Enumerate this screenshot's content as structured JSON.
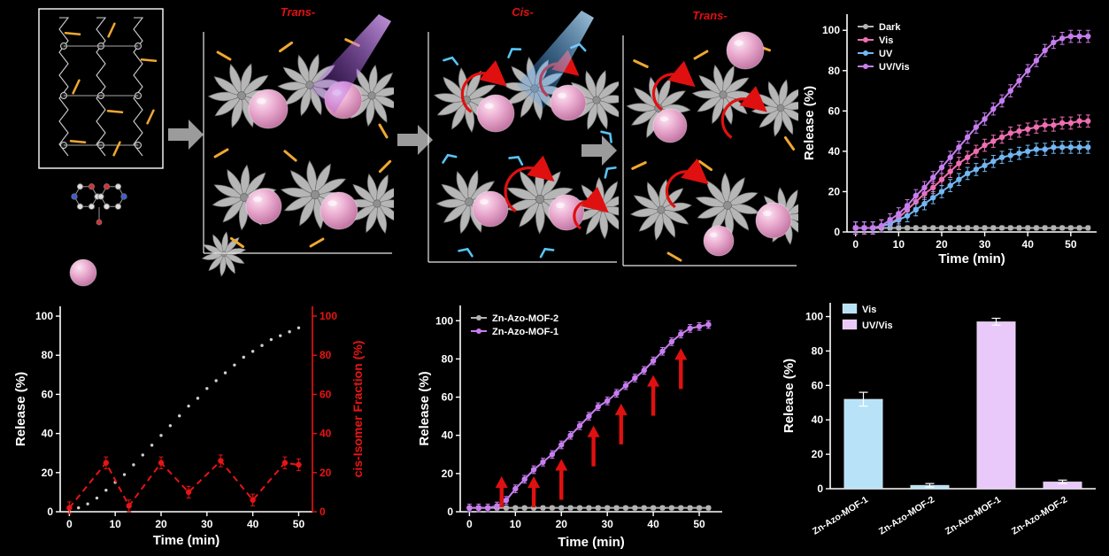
{
  "panels": {
    "trans1_label": "Trans-",
    "cis_label": "Cis-",
    "trans2_label": "Trans-"
  },
  "colors": {
    "background": "#000000",
    "accent_red": "#e01010",
    "sphere_pink": "#e2a3c7",
    "rosette_gray": "#b6b6b6",
    "azo_trans_orange": "#f0a830",
    "azo_cis_blue": "#58c4f5",
    "uv_beam_purple": "#b46ae6",
    "vis_beam_blue": "#3fa9f5"
  },
  "icons": {
    "guest_sphere": "pink-sphere",
    "rotor": "gray-rosette-pinwheel",
    "uv_beam": "purple-light-beam",
    "vis_beam": "blue-light-beam",
    "step_arrow": "gray-block-arrow",
    "rotation": "red-circular-arrow"
  },
  "chart_data": [
    {
      "id": "photo_release_kinetics",
      "type": "line",
      "title": "",
      "xlabel": "Time (min)",
      "ylabel": "Release (%)",
      "xlim": [
        -2,
        56
      ],
      "ylim": [
        0,
        108
      ],
      "xticks": [
        0,
        10,
        20,
        30,
        40,
        50
      ],
      "yticks": [
        0,
        20,
        40,
        60,
        80,
        100
      ],
      "grid": false,
      "legend_position": "top-left",
      "x": [
        0,
        2,
        4,
        6,
        8,
        10,
        12,
        14,
        16,
        18,
        20,
        22,
        24,
        26,
        28,
        30,
        32,
        34,
        36,
        38,
        40,
        42,
        44,
        46,
        48,
        50,
        52,
        54
      ],
      "series": [
        {
          "name": "Dark",
          "color": "#b3b3b3",
          "line": "solid",
          "marker": "circle",
          "error": 1,
          "values": [
            2,
            2,
            2,
            2,
            2,
            2,
            2,
            2,
            2,
            2,
            2,
            2,
            2,
            2,
            2,
            2,
            2,
            2,
            2,
            2,
            2,
            2,
            2,
            2,
            2,
            2,
            2,
            2
          ]
        },
        {
          "name": "Vis",
          "color": "#f06eb2",
          "line": "solid",
          "marker": "circle",
          "error": 3,
          "values": [
            2,
            2,
            2,
            3,
            4,
            7,
            11,
            15,
            19,
            22,
            26,
            30,
            34,
            37,
            40,
            43,
            45,
            47,
            49,
            50,
            51,
            52,
            53,
            53,
            54,
            54,
            55,
            55
          ]
        },
        {
          "name": "UV",
          "color": "#72b6f2",
          "line": "solid",
          "marker": "circle",
          "error": 3,
          "values": [
            2,
            2,
            2,
            3,
            4,
            6,
            8,
            11,
            14,
            17,
            20,
            23,
            26,
            29,
            31,
            33,
            35,
            37,
            38,
            39,
            40,
            41,
            41,
            42,
            42,
            42,
            42,
            42
          ]
        },
        {
          "name": "UV/Vis",
          "color": "#c77df0",
          "line": "solid",
          "marker": "circle",
          "error": 3,
          "values": [
            2,
            2,
            2,
            3,
            6,
            9,
            13,
            18,
            22,
            27,
            32,
            37,
            42,
            47,
            52,
            56,
            61,
            65,
            70,
            75,
            80,
            85,
            90,
            94,
            96,
            97,
            97,
            97
          ]
        }
      ]
    },
    {
      "id": "release_vs_cis_fraction",
      "type": "line-dual",
      "title": "",
      "xlabel": "Time (min)",
      "ylabel": "Release (%)",
      "ylabel_right": "cis-Isomer Fraction (%)",
      "xlim": [
        -2,
        53
      ],
      "ylim": [
        0,
        105
      ],
      "ylim_right": [
        0,
        105
      ],
      "xticks": [
        0,
        10,
        20,
        30,
        40,
        50
      ],
      "yticks": [
        0,
        20,
        40,
        60,
        80,
        100
      ],
      "yticks_right": [
        0,
        20,
        40,
        60,
        80,
        100
      ],
      "right_axis_color": "#e81414",
      "series": [
        {
          "name": "Release",
          "axis": "left",
          "color": "#cfcfcf",
          "line": "none",
          "marker": "dot",
          "error": 0,
          "x": [
            0,
            2,
            4,
            6,
            8,
            10,
            12,
            14,
            16,
            18,
            20,
            22,
            24,
            26,
            28,
            30,
            32,
            34,
            36,
            38,
            40,
            42,
            44,
            46,
            48,
            50
          ],
          "values": [
            0,
            2,
            4,
            7,
            11,
            15,
            19,
            24,
            29,
            34,
            39,
            44,
            49,
            54,
            58,
            63,
            67,
            71,
            75,
            79,
            82,
            85,
            88,
            90,
            92,
            94
          ]
        },
        {
          "name": "cis-Isomer Fraction",
          "axis": "right",
          "color": "#e81414",
          "line": "dashed",
          "marker": "circle",
          "error": 3,
          "x": [
            0,
            8,
            13,
            20,
            26,
            33,
            40,
            47,
            50
          ],
          "values": [
            2,
            25,
            3,
            25,
            10,
            26,
            6,
            25,
            24
          ]
        }
      ]
    },
    {
      "id": "mof1_vs_mof2_release",
      "type": "line",
      "title": "",
      "xlabel": "Time (min)",
      "ylabel": "Release (%)",
      "xlim": [
        -2,
        55
      ],
      "ylim": [
        0,
        108
      ],
      "xticks": [
        0,
        10,
        20,
        30,
        40,
        50
      ],
      "yticks": [
        0,
        20,
        40,
        60,
        80,
        100
      ],
      "legend_position": "top-left",
      "x": [
        0,
        2,
        4,
        6,
        8,
        10,
        12,
        14,
        16,
        18,
        20,
        22,
        24,
        26,
        28,
        30,
        32,
        34,
        36,
        38,
        40,
        42,
        44,
        46,
        48,
        50,
        52
      ],
      "series": [
        {
          "name": "Zn-Azo-MOF-2",
          "color": "#b3b3b3",
          "line": "solid",
          "marker": "circle",
          "error": 1,
          "values": [
            2,
            2,
            2,
            2,
            2,
            2,
            2,
            2,
            2,
            2,
            2,
            2,
            2,
            2,
            2,
            2,
            2,
            2,
            2,
            2,
            2,
            2,
            2,
            2,
            2,
            2,
            2
          ]
        },
        {
          "name": "Zn-Azo-MOF-1",
          "color": "#c77df0",
          "line": "solid",
          "marker": "circle",
          "error": 2,
          "values": [
            2,
            2,
            2,
            3,
            6,
            12,
            17,
            22,
            26,
            30,
            35,
            40,
            45,
            50,
            55,
            58,
            62,
            66,
            70,
            74,
            79,
            84,
            89,
            93,
            96,
            97,
            98
          ]
        }
      ],
      "annotation_arrows_x": [
        7,
        14,
        20,
        27,
        33,
        40,
        46
      ],
      "annotation_arrow_color": "#e01010"
    },
    {
      "id": "release_comparison_bars",
      "type": "bar",
      "title": "",
      "ylabel": "Release (%)",
      "ylim": [
        0,
        108
      ],
      "yticks": [
        0,
        20,
        40,
        60,
        80,
        100
      ],
      "categories": [
        "Zn-Azo-MOF-1",
        "Zn-Azo-MOF-2",
        "Zn-Azo-MOF-1",
        "Zn-Azo-MOF-2"
      ],
      "values": [
        52,
        2,
        97,
        4
      ],
      "errors": [
        4,
        1,
        2,
        1
      ],
      "bar_colors": [
        "#b8e2f8",
        "#b8e2f8",
        "#e9c9f9",
        "#e9c9f9"
      ],
      "legend": [
        {
          "label": "Vis",
          "color": "#b8e2f8"
        },
        {
          "label": "UV/Vis",
          "color": "#e9c9f9"
        }
      ]
    }
  ]
}
